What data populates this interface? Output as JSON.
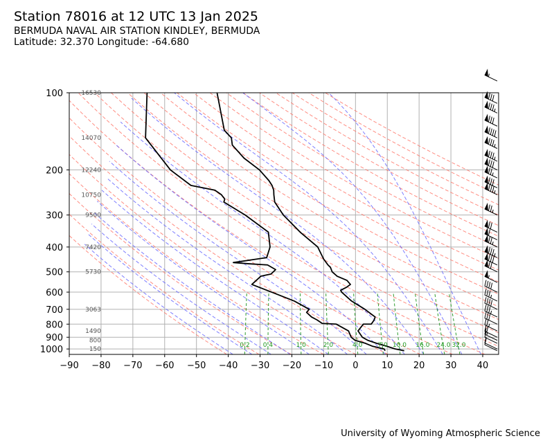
{
  "header": {
    "title": "Station 78016 at 12 UTC 13 Jan 2025",
    "station_name": "BERMUDA NAVAL AIR STATION KINDLEY, BERMUDA",
    "location": "Latitude: 32.370 Longitude: -64.680"
  },
  "footer": {
    "credit": "University of Wyoming Atmospheric Science"
  },
  "chart_data": {
    "type": "line",
    "subtype": "skew-T log-p diagram",
    "xlabel": "",
    "ylabel": "",
    "x_ticks": [
      -90,
      -80,
      -70,
      -60,
      -50,
      -40,
      -30,
      -20,
      -10,
      0,
      10,
      20,
      30,
      40
    ],
    "xlim": [
      -90,
      45
    ],
    "y_ticks": [
      100,
      200,
      300,
      400,
      500,
      600,
      700,
      800,
      900,
      1000
    ],
    "ylim": [
      1050,
      100
    ],
    "y_scale": "log",
    "grid": true,
    "height_labels": [
      {
        "p": 100,
        "text": "16530"
      },
      {
        "p": 150,
        "text": "14070"
      },
      {
        "p": 200,
        "text": "12240"
      },
      {
        "p": 250,
        "text": "10750"
      },
      {
        "p": 300,
        "text": "9500"
      },
      {
        "p": 400,
        "text": "7420"
      },
      {
        "p": 500,
        "text": "5730"
      },
      {
        "p": 700,
        "text": "3063"
      },
      {
        "p": 850,
        "text": "1490"
      },
      {
        "p": 925,
        "text": "800"
      },
      {
        "p": 1000,
        "text": "150"
      }
    ],
    "mixing_ratio_labels": [
      "0.2",
      "0.4",
      "1.0",
      "2.0",
      "4.0",
      "7.0",
      "10.0",
      "16.0",
      "24.0",
      "32.0"
    ],
    "mixing_ratio_values": [
      0.2,
      0.4,
      1.0,
      2.0,
      4.0,
      7.0,
      10.0,
      16.0,
      24.0,
      32.0
    ],
    "series": [
      {
        "role": "temperature",
        "color": "#000000",
        "points": [
          [
            1016,
            15.5
          ],
          [
            1000,
            12.5
          ],
          [
            975,
            9.5
          ],
          [
            950,
            6.0
          ],
          [
            925,
            3.0
          ],
          [
            900,
            1.0
          ],
          [
            850,
            -1.0
          ],
          [
            800,
            0.0
          ],
          [
            800,
            2.5
          ],
          [
            770,
            3.0
          ],
          [
            750,
            3.0
          ],
          [
            700,
            -1.0
          ],
          [
            650,
            -6.0
          ],
          [
            600,
            -10.0
          ],
          [
            590,
            -10.5
          ],
          [
            575,
            -9.0
          ],
          [
            560,
            -8.0
          ],
          [
            540,
            -9.5
          ],
          [
            520,
            -13.0
          ],
          [
            500,
            -15.0
          ],
          [
            480,
            -16.0
          ],
          [
            470,
            -17.0
          ],
          [
            445,
            -19.0
          ],
          [
            400,
            -22.0
          ],
          [
            350,
            -29.0
          ],
          [
            300,
            -36.0
          ],
          [
            267,
            -40.0
          ],
          [
            250,
            -41.0
          ],
          [
            240,
            -41.5
          ],
          [
            230,
            -42.5
          ],
          [
            220,
            -44.0
          ],
          [
            200,
            -48.0
          ],
          [
            180,
            -54.0
          ],
          [
            160,
            -59.0
          ],
          [
            150,
            -60.0
          ],
          [
            140,
            -63.0
          ],
          [
            100,
            -69.0
          ]
        ]
      },
      {
        "role": "dewpoint",
        "color": "#000000",
        "points": [
          [
            1016,
            9.5
          ],
          [
            1000,
            9.0
          ],
          [
            975,
            5.0
          ],
          [
            950,
            2.5
          ],
          [
            925,
            -1.0
          ],
          [
            900,
            -2.5
          ],
          [
            850,
            -4.0
          ],
          [
            800,
            -8.5
          ],
          [
            795,
            -13.0
          ],
          [
            770,
            -15.0
          ],
          [
            750,
            -17.0
          ],
          [
            720,
            -19.0
          ],
          [
            700,
            -18.5
          ],
          [
            650,
            -24.0
          ],
          [
            600,
            -32.0
          ],
          [
            560,
            -39.0
          ],
          [
            540,
            -38.0
          ],
          [
            520,
            -37.0
          ],
          [
            510,
            -34.0
          ],
          [
            490,
            -33.0
          ],
          [
            470,
            -36.0
          ],
          [
            465,
            -42.0
          ],
          [
            460,
            -47.0
          ],
          [
            440,
            -37.0
          ],
          [
            400,
            -37.0
          ],
          [
            350,
            -39.0
          ],
          [
            300,
            -48.0
          ],
          [
            267,
            -56.0
          ],
          [
            260,
            -56.0
          ],
          [
            250,
            -57.5
          ],
          [
            240,
            -60.0
          ],
          [
            230,
            -68.0
          ],
          [
            200,
            -76.0
          ],
          [
            150,
            -87.0
          ],
          [
            100,
            -91.0
          ]
        ]
      }
    ],
    "wind_barbs": [
      {
        "p": 1016,
        "speed_kt": 10
      },
      {
        "p": 1000,
        "speed_kt": 10
      },
      {
        "p": 950,
        "speed_kt": 10
      },
      {
        "p": 925,
        "speed_kt": 15
      },
      {
        "p": 900,
        "speed_kt": 20
      },
      {
        "p": 850,
        "speed_kt": 25
      },
      {
        "p": 800,
        "speed_kt": 30
      },
      {
        "p": 750,
        "speed_kt": 35
      },
      {
        "p": 700,
        "speed_kt": 40
      },
      {
        "p": 650,
        "speed_kt": 35
      },
      {
        "p": 600,
        "speed_kt": 40
      },
      {
        "p": 550,
        "speed_kt": 55
      },
      {
        "p": 500,
        "speed_kt": 70
      },
      {
        "p": 470,
        "speed_kt": 80
      },
      {
        "p": 440,
        "speed_kt": 85
      },
      {
        "p": 400,
        "speed_kt": 75
      },
      {
        "p": 375,
        "speed_kt": 60
      },
      {
        "p": 350,
        "speed_kt": 70
      },
      {
        "p": 300,
        "speed_kt": 75
      },
      {
        "p": 250,
        "speed_kt": 85
      },
      {
        "p": 235,
        "speed_kt": 80
      },
      {
        "p": 215,
        "speed_kt": 75
      },
      {
        "p": 200,
        "speed_kt": 80
      },
      {
        "p": 185,
        "speed_kt": 85
      },
      {
        "p": 165,
        "speed_kt": 85
      },
      {
        "p": 150,
        "speed_kt": 90
      },
      {
        "p": 135,
        "speed_kt": 80
      },
      {
        "p": 120,
        "speed_kt": 85
      },
      {
        "p": 110,
        "speed_kt": 80
      },
      {
        "p": 90,
        "speed_kt": 55
      }
    ],
    "colors": {
      "grid": "#b0b0b0",
      "isotherm": "#b0b0b0",
      "dry_adiabat": "#ff6f61",
      "moist_adiabat": "#6666ff",
      "mixing_ratio": "#2e9c2e",
      "mixing_label": "#1f9a1f",
      "height_label": "#555555",
      "sounding": "#000000"
    }
  }
}
